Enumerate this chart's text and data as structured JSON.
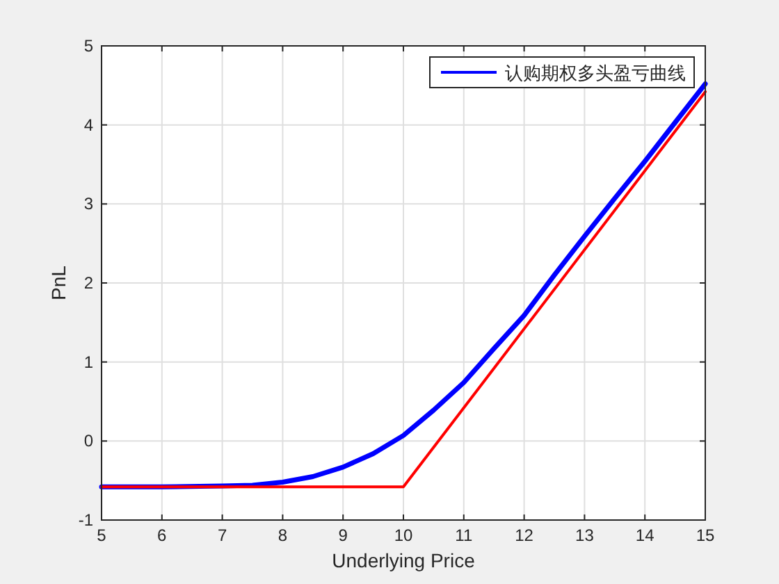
{
  "chart_data": {
    "type": "line",
    "xlabel": "Underlying Price",
    "ylabel": "PnL",
    "xlim": [
      5,
      15
    ],
    "xticks": [
      5,
      6,
      7,
      8,
      9,
      10,
      11,
      12,
      13,
      14,
      15
    ],
    "ylim": [
      -1,
      5
    ],
    "yticks": [
      -1,
      0,
      1,
      2,
      3,
      4,
      5
    ],
    "grid": true,
    "legend": "top right",
    "series": [
      {
        "name": "认购期权多头盈亏曲线",
        "color": "#0000ff",
        "x": [
          5,
          6,
          7,
          7.5,
          8,
          8.5,
          9,
          9.5,
          10,
          10.5,
          11,
          11.5,
          12,
          12.5,
          13,
          13.5,
          14,
          14.5,
          15
        ],
        "values": [
          -0.58,
          -0.58,
          -0.57,
          -0.56,
          -0.52,
          -0.45,
          -0.33,
          -0.16,
          0.07,
          0.39,
          0.74,
          1.17,
          1.59,
          2.1,
          2.59,
          3.07,
          3.54,
          4.03,
          4.52
        ]
      },
      {
        "color": "#ff0000",
        "x": [
          5,
          10,
          15
        ],
        "values": [
          -0.58,
          -0.58,
          4.42
        ]
      }
    ]
  }
}
